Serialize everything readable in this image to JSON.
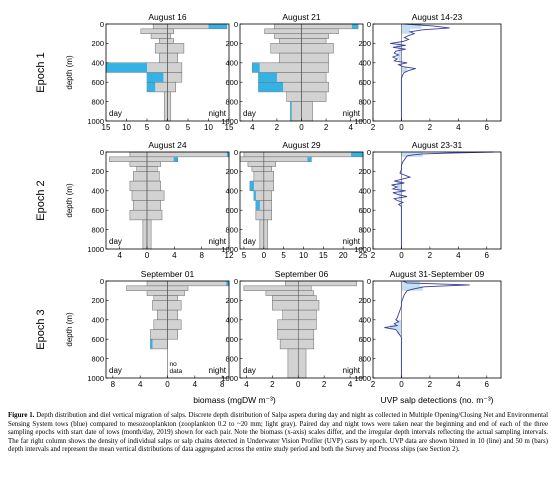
{
  "row_labels": [
    "Epoch 1",
    "Epoch 2",
    "Epoch 3"
  ],
  "ylabel": "depth (m)",
  "xlabel_biomass": "biomass (mgDW m⁻³)",
  "xlabel_uvp": "UVP salp detections (no. m⁻³)",
  "day_label": "day",
  "night_label": "night",
  "no_data_label": "no data",
  "depth_ticks": [
    "0",
    "200",
    "400",
    "600",
    "800",
    "1000"
  ],
  "colors": {
    "gray": "#d2d2d2",
    "blue": "#33b2e6",
    "line": "#3b3e9c",
    "outline": "#6a6a6a"
  },
  "caption": {
    "lead": "Figure 1.",
    "text": " Depth distribution and diel vertical migration of salps. Discrete depth distribution of Salpa aspera during day and night as collected in Multiple Opening/Closing Net and Environmental Sensing System tows (blue) compared to mesozooplankton (zooplankton 0.2 to ~20 mm; light gray). Paired day and night tows were taken near the beginning and end of each of the three sampling epochs with start date of tows (month/day, 2019) shown for each pair. Note the biomass (x-axis) scales differ, and the irregular depth intervals reflecting the actual sampling intervals. The far right column shows the density of individual salps or salp chains detected in Underwater Vision Profiler (UVP) casts by epoch. UVP data are shown binned in 10 (line) and 50 m (bars) depth intervals and represent the mean vertical distributions of data aggregated across the entire study period and both the Survey and Process ships (see Section 2)."
  },
  "chart_data": [
    {
      "type": "bar",
      "title": "August 16",
      "xlim": [
        -15,
        15
      ],
      "ylim": [
        0,
        1000
      ],
      "xticks": [
        -15,
        -10,
        -5,
        0,
        5,
        10,
        15
      ],
      "xtick_labels": [
        "15",
        "10",
        "5",
        "0",
        "5",
        "10",
        "15"
      ],
      "note": "",
      "bins": [
        {
          "top": 0,
          "bottom": 50,
          "zoo_day": 3.5,
          "zoo_night": 14.5,
          "salp_day": 0,
          "salp_night": 4.5
        },
        {
          "top": 50,
          "bottom": 100,
          "zoo_day": 6.5,
          "zoo_night": 1.5,
          "salp_day": 0,
          "salp_night": 0
        },
        {
          "top": 100,
          "bottom": 150,
          "zoo_day": 4,
          "zoo_night": 0.8,
          "salp_day": 0,
          "salp_night": 0
        },
        {
          "top": 150,
          "bottom": 200,
          "zoo_day": 2,
          "zoo_night": 1.5,
          "salp_day": 0,
          "salp_night": 0
        },
        {
          "top": 200,
          "bottom": 300,
          "zoo_day": 3,
          "zoo_night": 4,
          "salp_day": 0,
          "salp_night": 0
        },
        {
          "top": 300,
          "bottom": 400,
          "zoo_day": 2,
          "zoo_night": 2.5,
          "salp_day": 0,
          "salp_night": 0
        },
        {
          "top": 400,
          "bottom": 500,
          "zoo_day": 15,
          "zoo_night": 3.5,
          "salp_day": 10,
          "salp_night": 0
        },
        {
          "top": 500,
          "bottom": 600,
          "zoo_day": 5,
          "zoo_night": 3.5,
          "salp_day": 4,
          "salp_night": 0
        },
        {
          "top": 600,
          "bottom": 700,
          "zoo_day": 5,
          "zoo_night": 2,
          "salp_day": 2,
          "salp_night": 0
        },
        {
          "top": 700,
          "bottom": 1000,
          "zoo_day": 0.8,
          "zoo_night": 0.8,
          "salp_day": 0,
          "salp_night": 0
        }
      ]
    },
    {
      "type": "bar",
      "title": "August 21",
      "xlim": [
        -5,
        5
      ],
      "ylim": [
        0,
        1000
      ],
      "xticks": [
        -4,
        -2,
        0,
        2,
        4
      ],
      "xtick_labels": [
        "4",
        "2",
        "0",
        "2",
        "4"
      ],
      "note": "",
      "bins": [
        {
          "top": 0,
          "bottom": 50,
          "zoo_day": 2.2,
          "zoo_night": 4.6,
          "salp_day": 0,
          "salp_night": 0.5
        },
        {
          "top": 50,
          "bottom": 100,
          "zoo_day": 3,
          "zoo_night": 3,
          "salp_day": 0,
          "salp_night": 0
        },
        {
          "top": 100,
          "bottom": 150,
          "zoo_day": 2.2,
          "zoo_night": 2.2,
          "salp_day": 0,
          "salp_night": 0
        },
        {
          "top": 150,
          "bottom": 200,
          "zoo_day": 1.8,
          "zoo_night": 2,
          "salp_day": 0,
          "salp_night": 0
        },
        {
          "top": 200,
          "bottom": 300,
          "zoo_day": 2.5,
          "zoo_night": 2.6,
          "salp_day": 0,
          "salp_night": 0
        },
        {
          "top": 300,
          "bottom": 400,
          "zoo_day": 1.8,
          "zoo_night": 2.2,
          "salp_day": 0,
          "salp_night": 0
        },
        {
          "top": 400,
          "bottom": 500,
          "zoo_day": 4,
          "zoo_night": 2.2,
          "salp_day": 0.6,
          "salp_night": 0
        },
        {
          "top": 500,
          "bottom": 600,
          "zoo_day": 3.5,
          "zoo_night": 2,
          "salp_day": 1.5,
          "salp_night": 0
        },
        {
          "top": 600,
          "bottom": 700,
          "zoo_day": 3.5,
          "zoo_night": 2.2,
          "salp_day": 2,
          "salp_night": 0
        },
        {
          "top": 700,
          "bottom": 800,
          "zoo_day": 1.2,
          "zoo_night": 2,
          "salp_day": 0,
          "salp_night": 0
        },
        {
          "top": 800,
          "bottom": 1000,
          "zoo_day": 0.9,
          "zoo_night": 0.9,
          "salp_day": 0.1,
          "salp_night": 0
        }
      ]
    },
    {
      "type": "line",
      "title": "August 14-23",
      "xlim": [
        -2,
        7
      ],
      "ylim": [
        0,
        1000
      ],
      "xticks": [
        -2,
        0,
        2,
        4,
        6
      ],
      "xtick_labels": [
        "2",
        "0",
        "2",
        "4",
        "6"
      ],
      "line": {
        "depth": [
          0,
          20,
          40,
          60,
          80,
          100,
          120,
          140,
          160,
          180,
          200,
          220,
          240,
          260,
          280,
          300,
          320,
          340,
          360,
          380,
          400,
          420,
          440,
          460,
          480,
          500,
          520,
          540,
          560,
          580,
          600,
          650,
          700,
          800,
          900,
          1000
        ],
        "value": [
          0.2,
          2.2,
          3.4,
          1.5,
          0.6,
          0.9,
          0.5,
          0.2,
          0.5,
          0.1,
          -0.8,
          0.3,
          -0.6,
          0.3,
          -0.4,
          -0.5,
          -0.2,
          -0.6,
          -0.3,
          -0.5,
          0.4,
          -0.2,
          0.1,
          1.0,
          0.5,
          0.2,
          0.1,
          0.05,
          0,
          0,
          0,
          0,
          0,
          0,
          0,
          0
        ]
      },
      "bars": [
        {
          "top": 0,
          "bottom": 50,
          "value": 1.4
        },
        {
          "top": 50,
          "bottom": 100,
          "value": 0.6
        },
        {
          "top": 200,
          "bottom": 250,
          "value": -0.3
        },
        {
          "top": 250,
          "bottom": 300,
          "value": -0.2
        },
        {
          "top": 300,
          "bottom": 350,
          "value": -0.3
        },
        {
          "top": 350,
          "bottom": 400,
          "value": -0.2
        },
        {
          "top": 450,
          "bottom": 500,
          "value": 0.4
        }
      ]
    },
    {
      "type": "bar",
      "title": "August 24",
      "xlim": [
        -6,
        12
      ],
      "ylim": [
        0,
        1000
      ],
      "xticks": [
        -4,
        0,
        4,
        8,
        12
      ],
      "xtick_labels": [
        "4",
        "0",
        "4",
        "8",
        "12"
      ],
      "note": "",
      "bins": [
        {
          "top": 0,
          "bottom": 50,
          "zoo_day": 2.5,
          "zoo_night": 12,
          "salp_day": 0,
          "salp_night": 0.3
        },
        {
          "top": 50,
          "bottom": 100,
          "zoo_day": 5.5,
          "zoo_night": 4.5,
          "salp_day": 0,
          "salp_night": 0.6
        },
        {
          "top": 100,
          "bottom": 150,
          "zoo_day": 2.5,
          "zoo_night": 2,
          "salp_day": 0,
          "salp_night": 0
        },
        {
          "top": 150,
          "bottom": 200,
          "zoo_day": 1.5,
          "zoo_night": 1.5,
          "salp_day": 0,
          "salp_night": 0
        },
        {
          "top": 200,
          "bottom": 300,
          "zoo_day": 2,
          "zoo_night": 1.8,
          "salp_day": 0,
          "salp_night": 0
        },
        {
          "top": 300,
          "bottom": 400,
          "zoo_day": 2.5,
          "zoo_night": 2,
          "salp_day": 0,
          "salp_night": 0
        },
        {
          "top": 400,
          "bottom": 500,
          "zoo_day": 2.2,
          "zoo_night": 2.5,
          "salp_day": 0,
          "salp_night": 0
        },
        {
          "top": 500,
          "bottom": 600,
          "zoo_day": 2,
          "zoo_night": 2,
          "salp_day": 0,
          "salp_night": 0
        },
        {
          "top": 600,
          "bottom": 700,
          "zoo_day": 2.5,
          "zoo_night": 2.2,
          "salp_day": 0,
          "salp_night": 0
        },
        {
          "top": 700,
          "bottom": 1000,
          "zoo_day": 0.6,
          "zoo_night": 0.6,
          "salp_day": 0,
          "salp_night": 0
        }
      ]
    },
    {
      "type": "bar",
      "title": "August 29",
      "xlim": [
        -6,
        25
      ],
      "ylim": [
        0,
        1000
      ],
      "xticks": [
        -5,
        0,
        5,
        10,
        15,
        20,
        25
      ],
      "xtick_labels": [
        "5",
        "0",
        "5",
        "10",
        "15",
        "20",
        "25"
      ],
      "note": "",
      "bins": [
        {
          "top": 0,
          "bottom": 50,
          "zoo_day": 5,
          "zoo_night": 25,
          "salp_day": 0,
          "salp_night": 3
        },
        {
          "top": 50,
          "bottom": 100,
          "zoo_day": 6,
          "zoo_night": 12,
          "salp_day": 0,
          "salp_night": 1
        },
        {
          "top": 100,
          "bottom": 150,
          "zoo_day": 4,
          "zoo_night": 3,
          "salp_day": 0,
          "salp_night": 0
        },
        {
          "top": 150,
          "bottom": 200,
          "zoo_day": 3,
          "zoo_night": 2,
          "salp_day": 0,
          "salp_night": 0
        },
        {
          "top": 200,
          "bottom": 300,
          "zoo_day": 2.5,
          "zoo_night": 2.5,
          "salp_day": 0,
          "salp_night": 0
        },
        {
          "top": 300,
          "bottom": 400,
          "zoo_day": 3.5,
          "zoo_night": 2.5,
          "salp_day": 1,
          "salp_night": 0
        },
        {
          "top": 400,
          "bottom": 500,
          "zoo_day": 2.5,
          "zoo_night": 2,
          "salp_day": 0.5,
          "salp_night": 0
        },
        {
          "top": 500,
          "bottom": 600,
          "zoo_day": 2,
          "zoo_night": 2,
          "salp_day": 1,
          "salp_night": 0
        },
        {
          "top": 600,
          "bottom": 700,
          "zoo_day": 2,
          "zoo_night": 2,
          "salp_day": 0,
          "salp_night": 0
        },
        {
          "top": 700,
          "bottom": 1000,
          "zoo_day": 1,
          "zoo_night": 1,
          "salp_day": 0,
          "salp_night": 0
        }
      ]
    },
    {
      "type": "line",
      "title": "August 23-31",
      "xlim": [
        -2,
        7
      ],
      "ylim": [
        0,
        1000
      ],
      "xticks": [
        -2,
        0,
        2,
        4,
        6
      ],
      "xtick_labels": [
        "2",
        "0",
        "2",
        "4",
        "6"
      ],
      "line": {
        "depth": [
          0,
          10,
          20,
          30,
          40,
          60,
          80,
          100,
          140,
          180,
          220,
          260,
          300,
          320,
          340,
          360,
          380,
          400,
          420,
          440,
          460,
          480,
          500,
          520,
          540,
          560,
          580,
          600,
          650,
          700,
          800,
          900,
          1000
        ],
        "value": [
          6.5,
          3.5,
          1.5,
          0.8,
          0.4,
          0.3,
          0.2,
          0.1,
          0,
          0,
          -0.1,
          0.6,
          -0.5,
          0.2,
          -0.7,
          -0.3,
          -0.6,
          0.3,
          -0.6,
          -0.2,
          0.4,
          -0.5,
          -0.3,
          0.1,
          -0.2,
          0,
          0,
          0,
          0,
          0,
          0,
          0,
          0
        ]
      },
      "bars": [
        {
          "top": 0,
          "bottom": 50,
          "value": 1.5
        },
        {
          "top": 300,
          "bottom": 350,
          "value": -0.3
        },
        {
          "top": 350,
          "bottom": 400,
          "value": -0.3
        },
        {
          "top": 400,
          "bottom": 450,
          "value": -0.2
        },
        {
          "top": 450,
          "bottom": 500,
          "value": -0.2
        }
      ]
    },
    {
      "type": "bar",
      "title": "September 01",
      "xlim": [
        -9,
        9
      ],
      "ylim": [
        0,
        1000
      ],
      "xticks": [
        -8,
        -4,
        0,
        4,
        8
      ],
      "xtick_labels": [
        "8",
        "4",
        "0",
        "4",
        "8"
      ],
      "note": "no data",
      "bins": [
        {
          "top": 0,
          "bottom": 50,
          "zoo_day": 3,
          "zoo_night": 9,
          "salp_day": 0,
          "salp_night": 0.4
        },
        {
          "top": 50,
          "bottom": 100,
          "zoo_day": 6,
          "zoo_night": 3,
          "salp_day": 0,
          "salp_night": 0
        },
        {
          "top": 100,
          "bottom": 150,
          "zoo_day": 3,
          "zoo_night": 2.5,
          "salp_day": 0,
          "salp_night": 0
        },
        {
          "top": 150,
          "bottom": 200,
          "zoo_day": 2,
          "zoo_night": 1.5,
          "salp_day": 0,
          "salp_night": 0
        },
        {
          "top": 200,
          "bottom": 300,
          "zoo_day": 2.2,
          "zoo_night": 2,
          "salp_day": 0,
          "salp_night": 0
        },
        {
          "top": 300,
          "bottom": 400,
          "zoo_day": 1.5,
          "zoo_night": 1.5,
          "salp_day": 0,
          "salp_night": 0
        },
        {
          "top": 400,
          "bottom": 500,
          "zoo_day": 2,
          "zoo_night": 2,
          "salp_day": 0,
          "salp_night": 0
        },
        {
          "top": 500,
          "bottom": 600,
          "zoo_day": 2.5,
          "zoo_night": 1.5,
          "salp_day": 0,
          "salp_night": 0
        },
        {
          "top": 600,
          "bottom": 700,
          "zoo_day": 2.5,
          "zoo_night": 0,
          "salp_day": 0.3,
          "salp_night": 0
        }
      ]
    },
    {
      "type": "bar",
      "title": "September 06",
      "xlim": [
        -4.5,
        5
      ],
      "ylim": [
        0,
        1000
      ],
      "xticks": [
        -4,
        -2,
        0,
        2,
        4
      ],
      "xtick_labels": [
        "4",
        "2",
        "0",
        "2",
        "4"
      ],
      "note": "",
      "bins": [
        {
          "top": 0,
          "bottom": 50,
          "zoo_day": 1,
          "zoo_night": 4.5,
          "salp_day": 0,
          "salp_night": 0
        },
        {
          "top": 50,
          "bottom": 100,
          "zoo_day": 4.2,
          "zoo_night": 1,
          "salp_day": 0,
          "salp_night": 0
        },
        {
          "top": 100,
          "bottom": 150,
          "zoo_day": 2.5,
          "zoo_night": 1.2,
          "salp_day": 0,
          "salp_night": 0
        },
        {
          "top": 150,
          "bottom": 200,
          "zoo_day": 2,
          "zoo_night": 1.4,
          "salp_day": 0,
          "salp_night": 0
        },
        {
          "top": 200,
          "bottom": 300,
          "zoo_day": 2,
          "zoo_night": 1.6,
          "salp_day": 0,
          "salp_night": 0
        },
        {
          "top": 300,
          "bottom": 400,
          "zoo_day": 1.2,
          "zoo_night": 1.4,
          "salp_day": 0,
          "salp_night": 0
        },
        {
          "top": 400,
          "bottom": 500,
          "zoo_day": 1.6,
          "zoo_night": 1.4,
          "salp_day": 0,
          "salp_night": 0
        },
        {
          "top": 500,
          "bottom": 600,
          "zoo_day": 1.6,
          "zoo_night": 1.2,
          "salp_day": 0,
          "salp_night": 0
        },
        {
          "top": 600,
          "bottom": 700,
          "zoo_day": 1.4,
          "zoo_night": 1.2,
          "salp_day": 0,
          "salp_night": 0
        },
        {
          "top": 700,
          "bottom": 1000,
          "zoo_day": 0.8,
          "zoo_night": 0.6,
          "salp_day": 0,
          "salp_night": 0
        }
      ]
    },
    {
      "type": "line",
      "title": "August 31-September 09",
      "xlim": [
        -2,
        7
      ],
      "ylim": [
        0,
        1000
      ],
      "xticks": [
        -2,
        0,
        2,
        4,
        6
      ],
      "xtick_labels": [
        "2",
        "0",
        "2",
        "4",
        "6"
      ],
      "line": {
        "depth": [
          0,
          20,
          40,
          50,
          60,
          80,
          100,
          140,
          180,
          220,
          260,
          300,
          340,
          380,
          400,
          420,
          440,
          460,
          480,
          500,
          520,
          540,
          560,
          580,
          600,
          650,
          700,
          800,
          900,
          1000
        ],
        "value": [
          0.1,
          0.4,
          4.8,
          3.0,
          1.6,
          0.9,
          0.4,
          0.2,
          0.1,
          0,
          0,
          -0.1,
          -0.2,
          -0.3,
          -0.4,
          -0.2,
          -0.5,
          -0.3,
          -1.2,
          -0.4,
          -0.3,
          -0.2,
          -0.1,
          0,
          0,
          0,
          0,
          0,
          0,
          0
        ]
      },
      "bars": [
        {
          "top": 0,
          "bottom": 50,
          "value": 1.3
        },
        {
          "top": 50,
          "bottom": 100,
          "value": 1.5
        },
        {
          "top": 400,
          "bottom": 450,
          "value": -0.3
        },
        {
          "top": 450,
          "bottom": 500,
          "value": -0.8
        },
        {
          "top": 500,
          "bottom": 550,
          "value": -0.3
        }
      ]
    }
  ]
}
